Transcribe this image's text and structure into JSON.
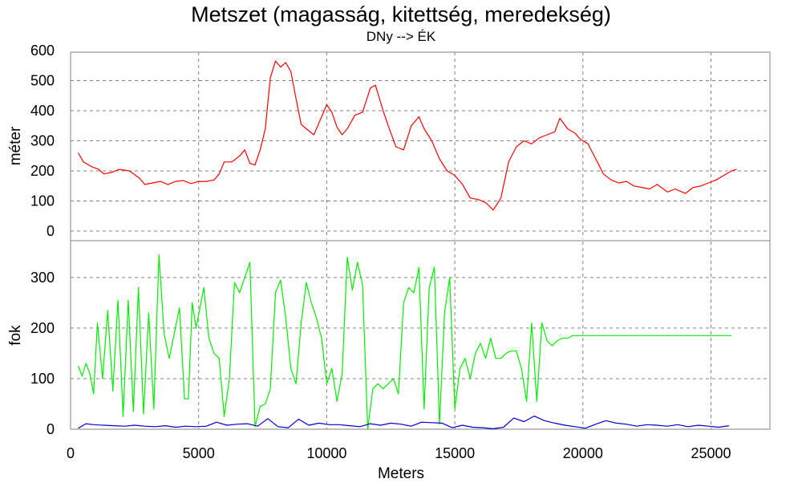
{
  "chart_data": {
    "type": "line",
    "title": "Metszet (magasság, kitettség, meredekség)",
    "subtitle": "DNy --> ÉK",
    "xlabel": "Meters",
    "xlim": [
      0,
      27300
    ],
    "xticks": [
      0,
      5000,
      10000,
      15000,
      20000,
      25000
    ],
    "grid": true,
    "panels": [
      {
        "ylabel": "méter",
        "ylim": [
          0,
          600
        ],
        "yticks": [
          0,
          100,
          200,
          300,
          400,
          500,
          600
        ],
        "series": [
          {
            "color": "#ff0000",
            "x": [
              300,
              500,
              800,
              1100,
              1300,
              1600,
              1900,
              2300,
              2700,
              2900,
              3200,
              3500,
              3800,
              4100,
              4400,
              4700,
              5000,
              5300,
              5600,
              5800,
              6000,
              6300,
              6600,
              6800,
              7000,
              7200,
              7400,
              7600,
              7800,
              8000,
              8200,
              8400,
              8600,
              8800,
              9000,
              9200,
              9500,
              9800,
              10000,
              10200,
              10400,
              10600,
              10800,
              11100,
              11400,
              11700,
              11900,
              12200,
              12400,
              12700,
              13000,
              13300,
              13600,
              13800,
              14100,
              14400,
              14700,
              15000,
              15300,
              15600,
              15900,
              16200,
              16500,
              16800,
              17100,
              17400,
              17700,
              18000,
              18300,
              18600,
              18900,
              19100,
              19400,
              19700,
              19900,
              20200,
              20500,
              20800,
              21100,
              21400,
              21700,
              22000,
              22300,
              22600,
              22900,
              23300,
              23600,
              24000,
              24300,
              24600,
              24900,
              25200,
              25500,
              25800,
              26000
            ],
            "y": [
              260,
              230,
              215,
              205,
              190,
              195,
              205,
              200,
              175,
              155,
              160,
              165,
              155,
              165,
              168,
              158,
              165,
              165,
              170,
              190,
              230,
              230,
              250,
              270,
              225,
              220,
              270,
              340,
              510,
              565,
              545,
              560,
              530,
              440,
              355,
              340,
              320,
              380,
              420,
              395,
              345,
              320,
              340,
              385,
              395,
              475,
              485,
              400,
              350,
              280,
              270,
              350,
              380,
              340,
              300,
              240,
              200,
              185,
              155,
              110,
              105,
              95,
              70,
              110,
              230,
              280,
              300,
              290,
              310,
              320,
              330,
              375,
              340,
              325,
              305,
              290,
              240,
              190,
              170,
              160,
              165,
              150,
              145,
              140,
              155,
              130,
              140,
              125,
              145,
              150,
              160,
              170,
              185,
              200,
              205
            ]
          }
        ]
      },
      {
        "ylabel": "fok",
        "ylim": [
          0,
          360
        ],
        "yticks": [
          0,
          100,
          200,
          300
        ],
        "series": [
          {
            "color": "#00ee00",
            "x": [
              300,
              450,
              600,
              750,
              900,
              1050,
              1250,
              1450,
              1650,
              1850,
              2050,
              2250,
              2450,
              2650,
              2850,
              3050,
              3250,
              3450,
              3650,
              3850,
              4050,
              4250,
              4450,
              4600,
              4750,
              4900,
              5050,
              5200,
              5400,
              5600,
              5800,
              6000,
              6200,
              6400,
              6600,
              6800,
              7000,
              7200,
              7400,
              7600,
              7800,
              8000,
              8200,
              8400,
              8600,
              8800,
              9000,
              9200,
              9400,
              9600,
              9800,
              10000,
              10200,
              10400,
              10600,
              10800,
              11000,
              11200,
              11400,
              11600,
              11800,
              12000,
              12200,
              12400,
              12600,
              12800,
              13000,
              13200,
              13400,
              13600,
              13800,
              14000,
              14200,
              14400,
              14600,
              14800,
              15000,
              15200,
              15400,
              15600,
              15800,
              16000,
              16200,
              16400,
              16600,
              16800,
              17000,
              17200,
              17400,
              17600,
              17800,
              18000,
              18200,
              18400,
              18600,
              18800,
              19000,
              19200,
              19400,
              19600,
              19800,
              20000,
              20200,
              20400,
              20600,
              20800,
              21000,
              21200,
              21400,
              21600,
              21800,
              22000,
              22200,
              22400,
              22600,
              22800,
              23000,
              23200,
              23400,
              23600,
              23800,
              24000,
              24200,
              24400,
              24600,
              24800,
              25000,
              25200,
              25400,
              25600,
              25800
            ],
            "y": [
              125,
              105,
              130,
              110,
              70,
              210,
              100,
              235,
              75,
              255,
              25,
              255,
              35,
              280,
              30,
              230,
              40,
              345,
              190,
              140,
              190,
              240,
              60,
              60,
              250,
              200,
              240,
              280,
              180,
              150,
              140,
              25,
              100,
              290,
              270,
              300,
              330,
              5,
              45,
              50,
              80,
              270,
              295,
              220,
              120,
              90,
              210,
              290,
              250,
              220,
              180,
              90,
              120,
              55,
              110,
              340,
              275,
              330,
              285,
              0,
              80,
              90,
              80,
              90,
              100,
              70,
              250,
              280,
              270,
              320,
              40,
              280,
              320,
              10,
              230,
              300,
              40,
              120,
              140,
              100,
              150,
              170,
              140,
              180,
              140,
              140,
              150,
              155,
              155,
              120,
              55,
              210,
              55,
              210,
              175,
              165,
              175,
              180,
              180,
              185,
              185,
              185,
              185,
              185,
              185,
              185,
              185,
              185,
              185,
              185,
              185,
              185,
              185,
              185,
              185,
              185,
              185,
              185,
              185,
              185,
              185,
              185,
              185,
              185,
              185,
              185,
              185,
              185,
              185,
              185,
              185
            ]
          },
          {
            "color": "#0000cc",
            "x": [
              300,
              600,
              900,
              1300,
              1700,
              2100,
              2500,
              2900,
              3300,
              3700,
              4100,
              4500,
              4900,
              5300,
              5700,
              6100,
              6500,
              6900,
              7300,
              7700,
              8100,
              8500,
              8900,
              9300,
              9700,
              10100,
              10500,
              10900,
              11300,
              11700,
              12100,
              12500,
              12900,
              13300,
              13700,
              14100,
              14500,
              14900,
              15300,
              15700,
              16100,
              16500,
              16900,
              17300,
              17700,
              18100,
              18500,
              18900,
              19300,
              19700,
              20100,
              20500,
              20900,
              21300,
              21700,
              22100,
              22500,
              22900,
              23300,
              23700,
              24100,
              24500,
              24900,
              25300,
              25700
            ],
            "y": [
              2,
              11,
              9,
              8,
              7,
              6,
              8,
              6,
              5,
              7,
              4,
              6,
              5,
              6,
              14,
              8,
              10,
              11,
              6,
              21,
              5,
              3,
              20,
              8,
              12,
              9,
              9,
              7,
              5,
              11,
              8,
              12,
              10,
              6,
              14,
              13,
              12,
              3,
              8,
              4,
              3,
              1,
              4,
              22,
              15,
              26,
              17,
              12,
              8,
              5,
              2,
              10,
              17,
              12,
              10,
              6,
              9,
              8,
              6,
              9,
              5,
              8,
              6,
              4,
              7
            ]
          }
        ]
      }
    ]
  }
}
